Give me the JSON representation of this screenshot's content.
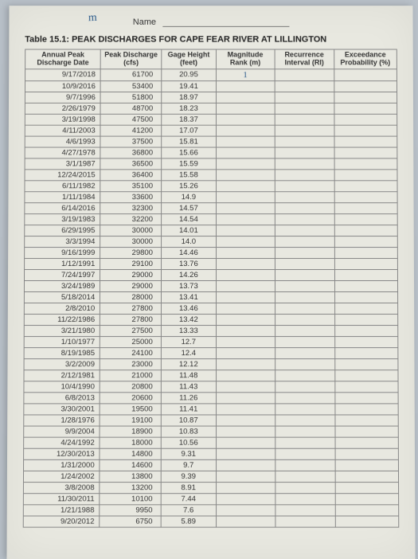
{
  "handwritten_m": "m",
  "name_label": "Name",
  "title": "Table 15.1: PEAK DISCHARGES FOR CAPE FEAR RIVER AT LILLINGTON",
  "columns": [
    "Annual Peak Discharge Date",
    "Peak Discharge (cfs)",
    "Gage Height (feet)",
    "Magnitude Rank (m)",
    "Recurrence Interval (RI)",
    "Exceedance Probability (%)"
  ],
  "col_widths": [
    "72px",
    "58px",
    "52px",
    "56px",
    "56px",
    "60px"
  ],
  "handwritten_rank_row0": "1",
  "rows": [
    {
      "date": "9/17/2018",
      "cfs": "61700",
      "ft": "20.95"
    },
    {
      "date": "10/9/2016",
      "cfs": "53400",
      "ft": "19.41"
    },
    {
      "date": "9/7/1996",
      "cfs": "51800",
      "ft": "18.97"
    },
    {
      "date": "2/26/1979",
      "cfs": "48700",
      "ft": "18.23"
    },
    {
      "date": "3/19/1998",
      "cfs": "47500",
      "ft": "18.37"
    },
    {
      "date": "4/11/2003",
      "cfs": "41200",
      "ft": "17.07"
    },
    {
      "date": "4/6/1993",
      "cfs": "37500",
      "ft": "15.81"
    },
    {
      "date": "4/27/1978",
      "cfs": "36800",
      "ft": "15.66"
    },
    {
      "date": "3/1/1987",
      "cfs": "36500",
      "ft": "15.59"
    },
    {
      "date": "12/24/2015",
      "cfs": "36400",
      "ft": "15.58"
    },
    {
      "date": "6/11/1982",
      "cfs": "35100",
      "ft": "15.26"
    },
    {
      "date": "1/11/1984",
      "cfs": "33600",
      "ft": "14.9"
    },
    {
      "date": "6/14/2016",
      "cfs": "32300",
      "ft": "14.57"
    },
    {
      "date": "3/19/1983",
      "cfs": "32200",
      "ft": "14.54"
    },
    {
      "date": "6/29/1995",
      "cfs": "30000",
      "ft": "14.01"
    },
    {
      "date": "3/3/1994",
      "cfs": "30000",
      "ft": "14.0"
    },
    {
      "date": "9/16/1999",
      "cfs": "29800",
      "ft": "14.46"
    },
    {
      "date": "1/12/1991",
      "cfs": "29100",
      "ft": "13.76"
    },
    {
      "date": "7/24/1997",
      "cfs": "29000",
      "ft": "14.26"
    },
    {
      "date": "3/24/1989",
      "cfs": "29000",
      "ft": "13.73"
    },
    {
      "date": "5/18/2014",
      "cfs": "28000",
      "ft": "13.41"
    },
    {
      "date": "2/8/2010",
      "cfs": "27800",
      "ft": "13.46"
    },
    {
      "date": "11/22/1986",
      "cfs": "27800",
      "ft": "13.42"
    },
    {
      "date": "3/21/1980",
      "cfs": "27500",
      "ft": "13.33"
    },
    {
      "date": "1/10/1977",
      "cfs": "25000",
      "ft": "12.7"
    },
    {
      "date": "8/19/1985",
      "cfs": "24100",
      "ft": "12.4"
    },
    {
      "date": "3/2/2009",
      "cfs": "23000",
      "ft": "12.12"
    },
    {
      "date": "2/12/1981",
      "cfs": "21000",
      "ft": "11.48"
    },
    {
      "date": "10/4/1990",
      "cfs": "20800",
      "ft": "11.43"
    },
    {
      "date": "6/8/2013",
      "cfs": "20600",
      "ft": "11.26"
    },
    {
      "date": "3/30/2001",
      "cfs": "19500",
      "ft": "11.41"
    },
    {
      "date": "1/28/1976",
      "cfs": "19100",
      "ft": "10.87"
    },
    {
      "date": "9/9/2004",
      "cfs": "18900",
      "ft": "10.83"
    },
    {
      "date": "4/24/1992",
      "cfs": "18000",
      "ft": "10.56"
    },
    {
      "date": "12/30/2013",
      "cfs": "14800",
      "ft": "9.31"
    },
    {
      "date": "1/31/2000",
      "cfs": "14600",
      "ft": "9.7"
    },
    {
      "date": "1/24/2002",
      "cfs": "13800",
      "ft": "9.39"
    },
    {
      "date": "3/8/2008",
      "cfs": "13200",
      "ft": "8.91"
    },
    {
      "date": "11/30/2011",
      "cfs": "10100",
      "ft": "7.44"
    },
    {
      "date": "1/21/1988",
      "cfs": "9950",
      "ft": "7.6"
    },
    {
      "date": "9/20/2012",
      "cfs": "6750",
      "ft": "5.89"
    }
  ]
}
